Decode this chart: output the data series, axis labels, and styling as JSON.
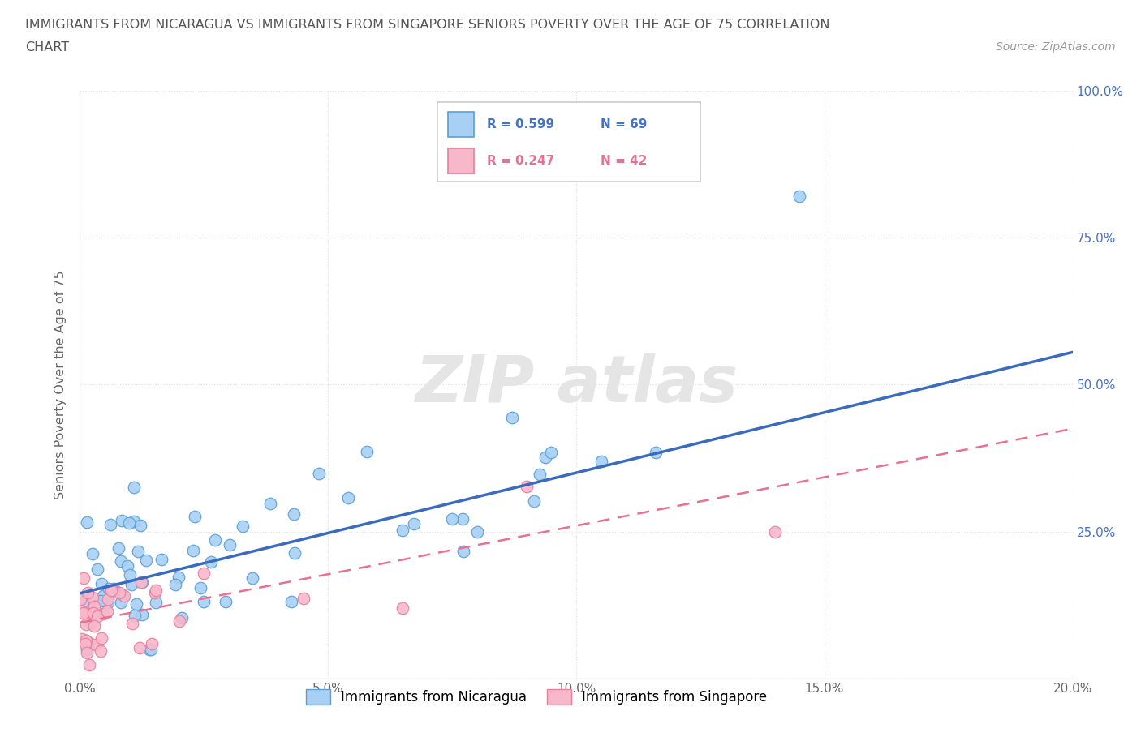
{
  "title_line1": "IMMIGRANTS FROM NICARAGUA VS IMMIGRANTS FROM SINGAPORE SENIORS POVERTY OVER THE AGE OF 75 CORRELATION",
  "title_line2": "CHART",
  "source": "Source: ZipAtlas.com",
  "ylabel": "Seniors Poverty Over the Age of 75",
  "xlabel_nicaragua": "Immigrants from Nicaragua",
  "xlabel_singapore": "Immigrants from Singapore",
  "xlim": [
    0.0,
    0.2
  ],
  "ylim": [
    0.0,
    1.0
  ],
  "xtick_vals": [
    0.0,
    0.05,
    0.1,
    0.15,
    0.2
  ],
  "xtick_labels": [
    "0.0%",
    "5.0%",
    "10.0%",
    "15.0%",
    "20.0%"
  ],
  "ytick_vals": [
    0.0,
    0.25,
    0.5,
    0.75,
    1.0
  ],
  "ytick_labels_right": [
    "",
    "25.0%",
    "50.0%",
    "75.0%",
    "100.0%"
  ],
  "nicaragua_color": "#a8d0f5",
  "singapore_color": "#f7b8cc",
  "nicaragua_edge_color": "#5a9fd4",
  "singapore_edge_color": "#e8809a",
  "nicaragua_R": 0.599,
  "nicaragua_N": 69,
  "singapore_R": 0.247,
  "singapore_N": 42,
  "nicaragua_line_color": "#3a6bbf",
  "singapore_line_color": "#e87090",
  "background_color": "#ffffff",
  "grid_color": "#d8d8d8",
  "stats_box_color": "#4472c4",
  "stats_box_color2": "#e87090",
  "nicaragua_line_intercept": 0.145,
  "nicaragua_line_slope": 2.05,
  "singapore_line_intercept": 0.095,
  "singapore_line_slope": 1.65
}
